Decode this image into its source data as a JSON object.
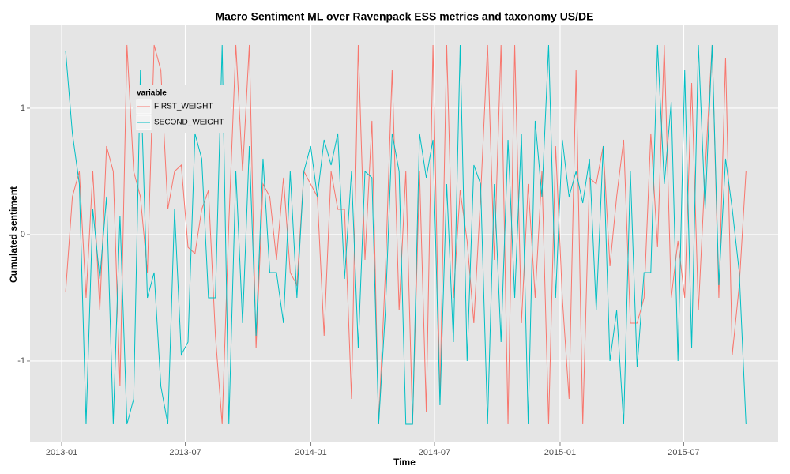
{
  "chart_data": {
    "type": "line",
    "title": "Macro Sentiment ML over Ravenpack ESS metrics and taxonomy US/DE",
    "x_label": "Time",
    "y_label": "Cumulated sentiment",
    "legend_title": "variable",
    "legend_position": "top-left",
    "grid": true,
    "x": [
      2013.016,
      2013.043,
      2013.071,
      2013.098,
      2013.125,
      2013.153,
      2013.18,
      2013.207,
      2013.234,
      2013.262,
      2013.289,
      2013.316,
      2013.344,
      2013.371,
      2013.398,
      2013.426,
      2013.453,
      2013.48,
      2013.507,
      2013.535,
      2013.562,
      2013.589,
      2013.617,
      2013.644,
      2013.671,
      2013.699,
      2013.726,
      2013.753,
      2013.78,
      2013.808,
      2013.835,
      2013.862,
      2013.89,
      2013.917,
      2013.944,
      2013.972,
      2013.999,
      2014.026,
      2014.053,
      2014.081,
      2014.108,
      2014.135,
      2014.163,
      2014.19,
      2014.217,
      2014.245,
      2014.272,
      2014.299,
      2014.326,
      2014.354,
      2014.381,
      2014.408,
      2014.436,
      2014.463,
      2014.49,
      2014.518,
      2014.545,
      2014.572,
      2014.599,
      2014.627,
      2014.654,
      2014.681,
      2014.709,
      2014.736,
      2014.763,
      2014.791,
      2014.818,
      2014.845,
      2014.872,
      2014.9,
      2014.927,
      2014.954,
      2014.982,
      2015.009,
      2015.036,
      2015.064,
      2015.091,
      2015.118,
      2015.145,
      2015.173,
      2015.2,
      2015.227,
      2015.255,
      2015.282,
      2015.309,
      2015.337,
      2015.364,
      2015.391,
      2015.418,
      2015.446,
      2015.473,
      2015.5,
      2015.528,
      2015.555,
      2015.582,
      2015.61,
      2015.637,
      2015.664,
      2015.691,
      2015.719,
      2015.746
    ],
    "series": [
      {
        "name": "FIRST_WEIGHT",
        "color": "#F8766D",
        "values": [
          -0.45,
          0.3,
          0.5,
          -0.5,
          0.5,
          -0.6,
          0.7,
          0.5,
          -1.2,
          1.5,
          0.5,
          0.3,
          -0.3,
          1.5,
          1.3,
          0.2,
          0.5,
          0.55,
          -0.1,
          -0.15,
          0.2,
          0.35,
          -0.8,
          -1.5,
          0.1,
          1.5,
          0.5,
          1.5,
          -0.9,
          0.4,
          0.3,
          -0.2,
          0.45,
          -0.3,
          -0.4,
          0.5,
          0.4,
          0.3,
          -0.8,
          0.5,
          0.2,
          0.2,
          -1.3,
          1.5,
          -0.2,
          0.9,
          -1.5,
          -0.3,
          1.3,
          -0.6,
          0.5,
          -1.5,
          0.5,
          -1.4,
          1.5,
          -1.3,
          1.5,
          -0.5,
          0.35,
          -0.05,
          -0.7,
          0.3,
          1.5,
          -0.2,
          1.5,
          -1.5,
          1.5,
          -0.7,
          0.4,
          -0.5,
          0.5,
          -1.5,
          0.7,
          -0.5,
          -1.3,
          1.3,
          -1.5,
          0.45,
          0.4,
          0.7,
          -0.25,
          0.3,
          0.75,
          -0.7,
          -0.7,
          -0.5,
          0.8,
          -0.1,
          1.5,
          -0.5,
          -0.05,
          -0.5,
          1.2,
          -0.6,
          0.5,
          1.5,
          -0.5,
          1.4,
          -0.95,
          -0.4,
          0.5
        ]
      },
      {
        "name": "SECOND_WEIGHT",
        "color": "#00BFC4",
        "values": [
          1.45,
          0.8,
          0.4,
          -1.5,
          0.2,
          -0.35,
          0.3,
          -1.5,
          0.15,
          -1.5,
          -1.3,
          1.3,
          -0.5,
          -0.3,
          -1.2,
          -1.5,
          0.2,
          -0.95,
          -0.85,
          0.8,
          0.6,
          -0.5,
          -0.5,
          1.5,
          -1.5,
          0.5,
          -0.7,
          0.7,
          -0.8,
          0.6,
          -0.3,
          -0.3,
          -0.7,
          0.5,
          -0.5,
          0.5,
          0.7,
          0.3,
          0.75,
          0.55,
          0.8,
          -0.35,
          0.5,
          -0.9,
          0.5,
          0.45,
          -1.5,
          -0.6,
          0.8,
          0.5,
          -1.5,
          -1.5,
          0.8,
          0.45,
          0.75,
          -1.35,
          0.4,
          -0.85,
          1.5,
          -1.0,
          0.55,
          0.4,
          -1.5,
          0.4,
          -0.85,
          0.75,
          -0.5,
          0.8,
          -1.5,
          0.9,
          0.3,
          1.5,
          -0.5,
          0.75,
          0.3,
          0.5,
          0.25,
          0.6,
          -0.6,
          0.7,
          -1.0,
          -0.6,
          -1.5,
          0.5,
          -1.05,
          -0.3,
          -0.3,
          1.5,
          0.4,
          1.05,
          -1.0,
          1.3,
          -0.9,
          1.5,
          0.2,
          1.5,
          -0.4,
          0.6,
          0.2,
          -0.3,
          -1.5
        ]
      }
    ],
    "xlim": [
      2012.873,
      2015.875
    ],
    "xticks": [
      {
        "value": 2013.0,
        "label": "2013-01"
      },
      {
        "value": 2013.496,
        "label": "2013-07"
      },
      {
        "value": 2014.0,
        "label": "2014-01"
      },
      {
        "value": 2014.496,
        "label": "2014-07"
      },
      {
        "value": 2015.0,
        "label": "2015-01"
      },
      {
        "value": 2015.496,
        "label": "2015-07"
      }
    ],
    "ylim": [
      -1.644,
      1.656
    ],
    "yticks": [
      -1,
      0,
      1
    ]
  }
}
